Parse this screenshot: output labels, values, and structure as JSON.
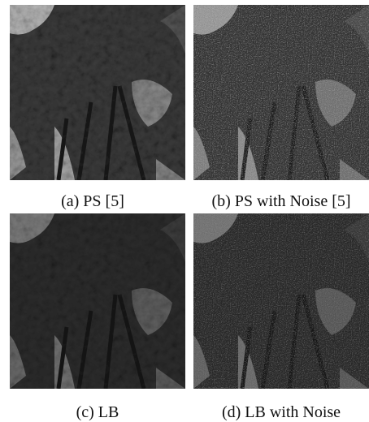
{
  "figure": {
    "panels": [
      {
        "caption": "(a) PS [5]"
      },
      {
        "caption": "(b) PS with Noise [5]"
      },
      {
        "caption": "(c) LB"
      },
      {
        "caption": "(d) LB with Noise"
      }
    ]
  }
}
